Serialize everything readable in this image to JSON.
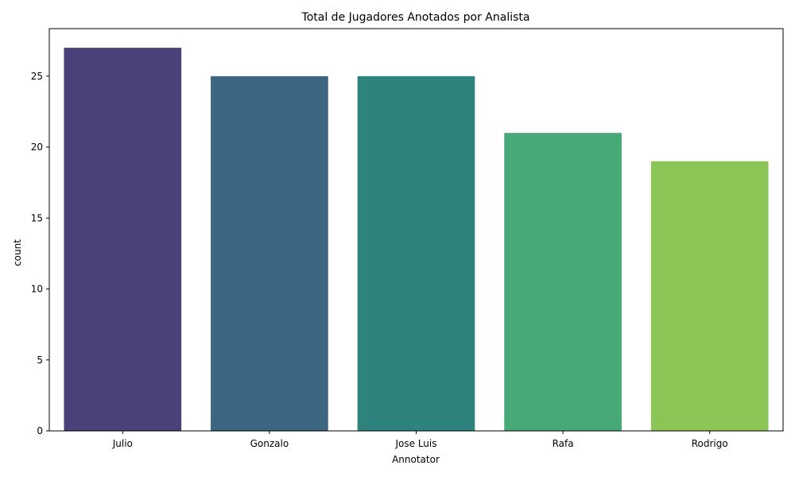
{
  "chart_data": {
    "type": "bar",
    "title": "Total de Jugadores Anotados por Analista",
    "xlabel": "Annotator",
    "ylabel": "count",
    "categories": [
      "Julio",
      "Gonzalo",
      "Jose Luis",
      "Rafa",
      "Rodrigo"
    ],
    "values": [
      27,
      25,
      25,
      21,
      19
    ],
    "colors": [
      "#4a4178",
      "#3d6683",
      "#2e847d",
      "#47a878",
      "#8bc556"
    ],
    "ylim": [
      0,
      28.35
    ],
    "yticks": [
      0,
      5,
      10,
      15,
      20,
      25
    ],
    "grid": false,
    "legend": "none"
  }
}
